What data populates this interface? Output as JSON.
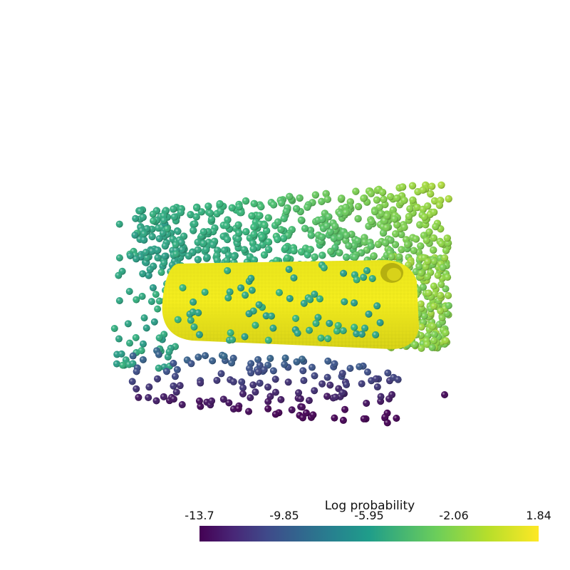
{
  "scene": {
    "description_icon": "point-cloud-render",
    "colors": {
      "cylinder": "#f2ea1a",
      "cylinder_shadow": "#d8d21a",
      "high": "#a8d83c",
      "mid": "#3fbf6f",
      "low_mid": "#21918c",
      "low": "#440154",
      "very_low": "#3b0f70"
    }
  },
  "colorbar": {
    "title": "Log probability",
    "ticks": [
      "-13.7",
      "-9.85",
      "-5.95",
      "-2.06",
      "1.84"
    ],
    "range": [
      -13.7,
      1.84
    ],
    "colormap": "viridis"
  }
}
